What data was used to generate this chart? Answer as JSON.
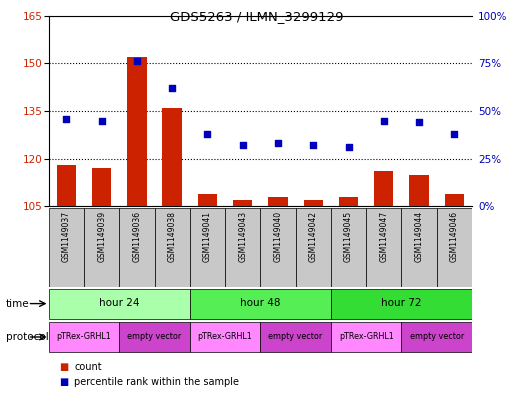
{
  "title": "GDS5263 / ILMN_3299129",
  "samples": [
    "GSM1149037",
    "GSM1149039",
    "GSM1149036",
    "GSM1149038",
    "GSM1149041",
    "GSM1149043",
    "GSM1149040",
    "GSM1149042",
    "GSM1149045",
    "GSM1149047",
    "GSM1149044",
    "GSM1149046"
  ],
  "count_values": [
    118,
    117,
    152,
    136,
    109,
    107,
    108,
    107,
    108,
    116,
    115,
    109
  ],
  "percentile_values": [
    46,
    45,
    76,
    62,
    38,
    32,
    33,
    32,
    31,
    45,
    44,
    38
  ],
  "ylim_left": [
    105,
    165
  ],
  "ylim_right": [
    0,
    100
  ],
  "yticks_left": [
    105,
    120,
    135,
    150,
    165
  ],
  "yticks_right": [
    0,
    25,
    50,
    75,
    100
  ],
  "ytick_labels_left": [
    "105",
    "120",
    "135",
    "150",
    "165"
  ],
  "ytick_labels_right": [
    "0%",
    "25%",
    "50%",
    "75%",
    "100%"
  ],
  "bar_color": "#CC2200",
  "dot_color": "#0000BB",
  "sample_bg_color": "#C8C8C8",
  "bar_width": 0.55,
  "time_groups": [
    {
      "label": "hour 24",
      "start": 0,
      "end": 3,
      "color": "#AAFFAA"
    },
    {
      "label": "hour 48",
      "start": 4,
      "end": 7,
      "color": "#55EE55"
    },
    {
      "label": "hour 72",
      "start": 8,
      "end": 11,
      "color": "#33DD33"
    }
  ],
  "proto_groups": [
    {
      "label": "pTRex-GRHL1",
      "start": 0,
      "end": 1,
      "color": "#FF88FF"
    },
    {
      "label": "empty vector",
      "start": 2,
      "end": 3,
      "color": "#CC44CC"
    },
    {
      "label": "pTRex-GRHL1",
      "start": 4,
      "end": 5,
      "color": "#FF88FF"
    },
    {
      "label": "empty vector",
      "start": 6,
      "end": 7,
      "color": "#CC44CC"
    },
    {
      "label": "pTRex-GRHL1",
      "start": 8,
      "end": 9,
      "color": "#FF88FF"
    },
    {
      "label": "empty vector",
      "start": 10,
      "end": 11,
      "color": "#CC44CC"
    }
  ]
}
